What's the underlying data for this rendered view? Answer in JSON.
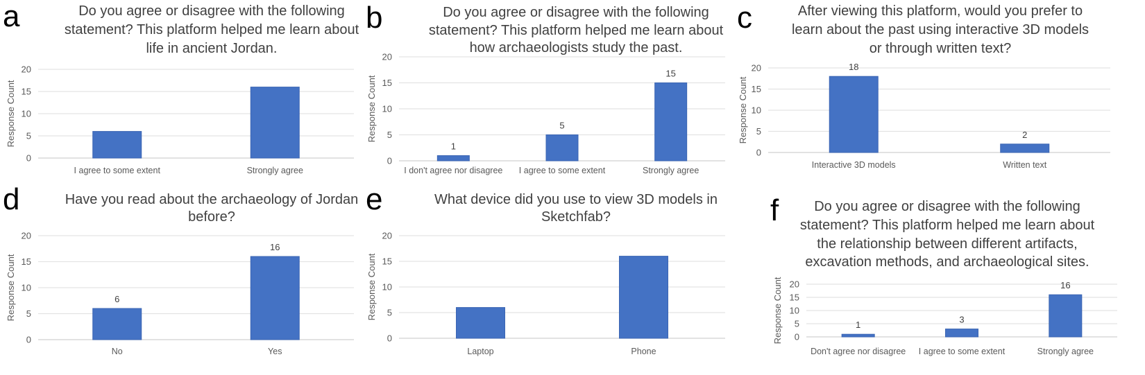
{
  "chart_data": [
    {
      "panel": "a",
      "type": "bar",
      "title": [
        "Do you agree or disagree with the following",
        "statement? This platform helped me learn about",
        "life in ancient Jordan."
      ],
      "ylabel": "Response Count",
      "ylim": [
        0,
        20
      ],
      "yticks": [
        0,
        5,
        10,
        15,
        20
      ],
      "grid": true,
      "categories": [
        "I agree to some extent",
        "Strongly agree"
      ],
      "values": [
        6,
        16
      ],
      "data_labels": false,
      "color": "#4472C4"
    },
    {
      "panel": "b",
      "type": "bar",
      "title": [
        "Do you agree or disagree with the following",
        "statement? This platform helped me learn about",
        "how archaeologists study the past."
      ],
      "ylabel": "Response Count",
      "ylim": [
        0,
        20
      ],
      "yticks": [
        0,
        5,
        10,
        15,
        20
      ],
      "grid": true,
      "categories": [
        "I don't agree nor disagree",
        "I agree to some extent",
        "Strongly agree"
      ],
      "values": [
        1,
        5,
        15
      ],
      "data_labels": true,
      "color": "#4472C4"
    },
    {
      "panel": "c",
      "type": "bar",
      "title": [
        "After viewing this platform, would you prefer to",
        "learn about the past using interactive 3D models",
        "or through written text?"
      ],
      "ylabel": "Response Count",
      "ylim": [
        0,
        20
      ],
      "yticks": [
        0,
        5,
        10,
        15,
        20
      ],
      "grid": true,
      "categories": [
        "Interactive 3D models",
        "Written text"
      ],
      "values": [
        18,
        2
      ],
      "data_labels": true,
      "color": "#4472C4"
    },
    {
      "panel": "d",
      "type": "bar",
      "title": [
        "Have you read about the archaeology of Jordan",
        "before?"
      ],
      "ylabel": "Response Count",
      "ylim": [
        0,
        20
      ],
      "yticks": [
        0,
        5,
        10,
        15,
        20
      ],
      "grid": true,
      "categories": [
        "No",
        "Yes"
      ],
      "values": [
        6,
        16
      ],
      "data_labels": true,
      "color": "#4472C4"
    },
    {
      "panel": "e",
      "type": "bar",
      "title": [
        "What device did you use to view 3D models in",
        "Sketchfab?"
      ],
      "ylabel": "Response Count",
      "ylim": [
        0,
        20
      ],
      "yticks": [
        0,
        5,
        10,
        15,
        20
      ],
      "grid": true,
      "categories": [
        "Laptop",
        "Phone"
      ],
      "values": [
        6,
        16
      ],
      "data_labels": false,
      "color": "#4472C4"
    },
    {
      "panel": "f",
      "type": "bar",
      "title": [
        "Do you agree or disagree with the following",
        "statement? This platform helped me learn about",
        "the relationship between different artifacts,",
        "excavation methods, and archaeological sites."
      ],
      "ylabel": "Response Count",
      "ylim": [
        0,
        20
      ],
      "yticks": [
        0,
        5,
        10,
        15,
        20
      ],
      "grid": true,
      "categories": [
        "Don't agree nor disagree",
        "I agree to some extent",
        "Strongly agree"
      ],
      "values": [
        1,
        3,
        16
      ],
      "data_labels": true,
      "color": "#4472C4"
    }
  ]
}
